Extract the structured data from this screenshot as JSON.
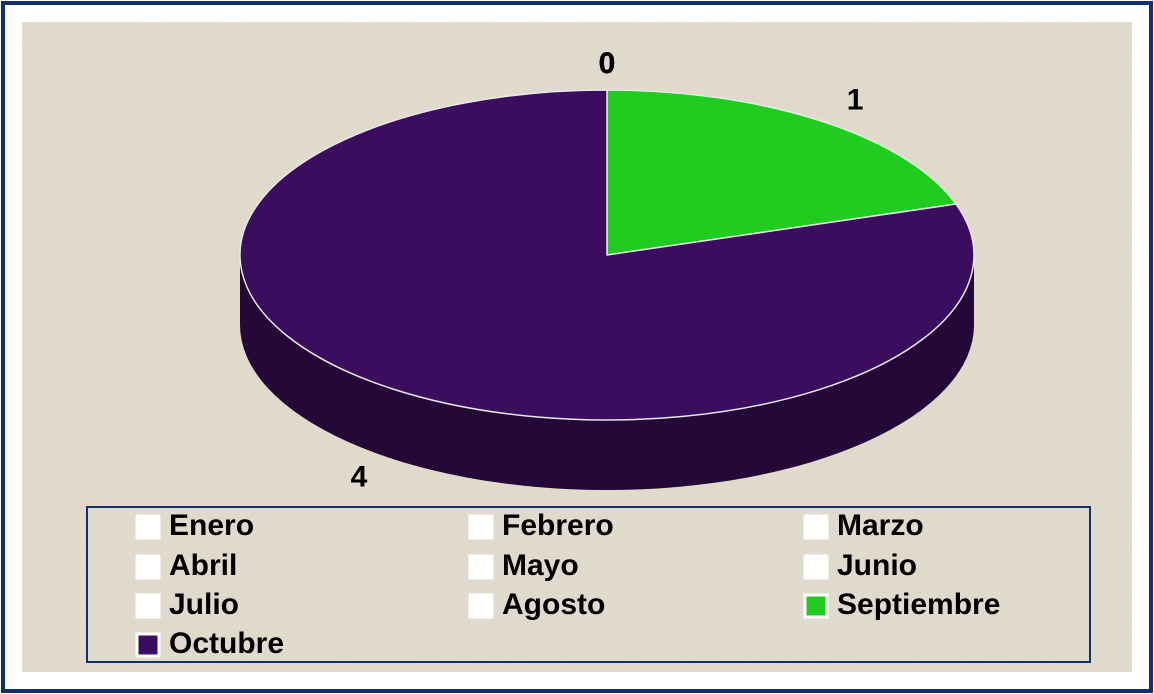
{
  "chart_data": {
    "type": "pie",
    "categories": [
      "Enero",
      "Febrero",
      "Marzo",
      "Abril",
      "Mayo",
      "Junio",
      "Julio",
      "Agosto",
      "Septiembre",
      "Octubre"
    ],
    "values": [
      0,
      0,
      0,
      0,
      0,
      0,
      0,
      0,
      1,
      4
    ],
    "colors": [
      "#ffffff",
      "#ffffff",
      "#ffffff",
      "#ffffff",
      "#ffffff",
      "#ffffff",
      "#ffffff",
      "#ffffff",
      "#1fcc1f",
      "#3b0d5e"
    ],
    "legend": "bottom"
  }
}
